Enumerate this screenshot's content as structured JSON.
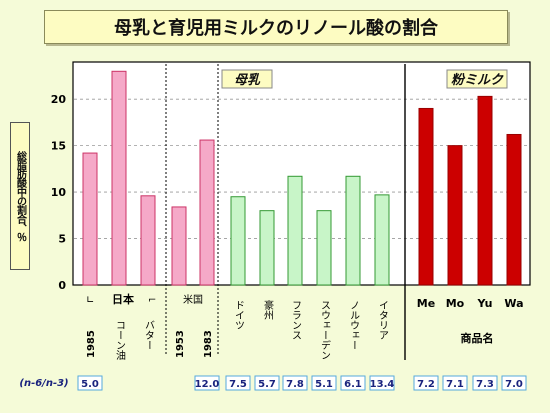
{
  "title": "母乳と育児用ミルクのリノール酸の割合",
  "ylabel": "総脂肪酸中の割合、％",
  "section_labels": {
    "breast_milk": "母乳",
    "formula": "粉ミルク"
  },
  "groups": {
    "japan": "日本",
    "usa": "米国",
    "brands": "商品名"
  },
  "ratio_label": "(n-6/n-3)",
  "colors": {
    "japan": "#f5a9c8",
    "usa": "#f5a9c8",
    "foreign": "#c8f5c8",
    "formula": "#cc0000"
  },
  "chart_data": {
    "type": "bar",
    "ylim": [
      0,
      24
    ],
    "yticks": [
      0,
      5,
      10,
      15,
      20
    ],
    "categories": [
      "1985",
      "コーン油",
      "バター",
      "1953",
      "1983",
      "ドイツ",
      "豪州",
      "フランス",
      "スウェーデン",
      "ノルウェー",
      "イタリア",
      "Me",
      "Mo",
      "Yu",
      "Wa"
    ],
    "values": [
      14.2,
      23.0,
      9.6,
      8.4,
      15.6,
      9.5,
      8.0,
      11.7,
      8.0,
      11.7,
      9.7,
      19.0,
      15.0,
      20.3,
      16.2
    ],
    "ratios": [
      "5.0",
      "",
      "",
      "",
      "12.0",
      "7.5",
      "5.7",
      "7.8",
      "5.1",
      "6.1",
      "13.4",
      "7.2",
      "7.1",
      "7.3",
      "7.0"
    ]
  }
}
